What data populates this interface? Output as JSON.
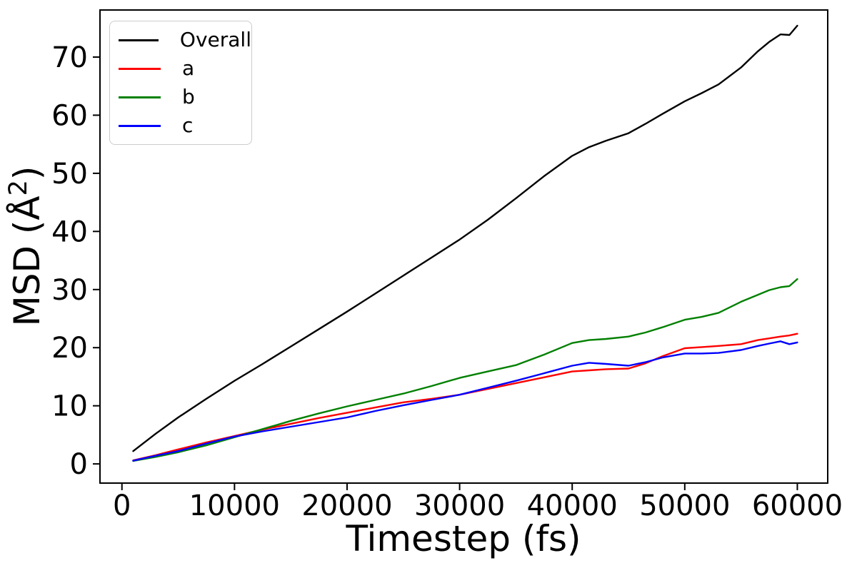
{
  "figure": {
    "background": "#ffffff"
  },
  "chart_data": {
    "type": "line",
    "title": "",
    "xlabel": "Timestep (fs)",
    "ylabel": "MSD (Å²)",
    "grid": false,
    "legend_position": "upper left",
    "xlim": [
      -1950,
      62700
    ],
    "ylim": [
      -3.3,
      78.1
    ],
    "x_ticks": [
      0,
      10000,
      20000,
      30000,
      40000,
      50000,
      60000
    ],
    "x_tick_labels": [
      "0",
      "10000",
      "20000",
      "30000",
      "40000",
      "50000",
      "60000"
    ],
    "y_ticks": [
      0,
      10,
      20,
      30,
      40,
      50,
      60,
      70
    ],
    "y_tick_labels": [
      "0",
      "10",
      "20",
      "30",
      "40",
      "50",
      "60",
      "70"
    ],
    "x": [
      1000,
      3000,
      5000,
      7500,
      10000,
      12500,
      15000,
      17500,
      20000,
      22500,
      25000,
      27500,
      30000,
      32500,
      35000,
      37500,
      40000,
      41500,
      43000,
      45000,
      46500,
      48000,
      50000,
      51500,
      53000,
      55000,
      56500,
      57500,
      58500,
      59300,
      60000
    ],
    "series": [
      {
        "name": "Overall",
        "color": "#000000",
        "values": [
          2.2,
          5.2,
          8.0,
          11.2,
          14.3,
          17.2,
          20.2,
          23.2,
          26.2,
          29.3,
          32.4,
          35.5,
          38.6,
          42.0,
          45.7,
          49.5,
          53.0,
          54.5,
          55.6,
          56.9,
          58.5,
          60.2,
          62.4,
          63.8,
          65.3,
          68.2,
          71.0,
          72.6,
          73.9,
          73.8,
          75.4
        ]
      },
      {
        "name": "a",
        "color": "#ff0000",
        "values": [
          0.6,
          1.5,
          2.5,
          3.7,
          4.8,
          5.9,
          6.9,
          7.9,
          8.8,
          9.7,
          10.6,
          11.2,
          11.9,
          12.9,
          13.9,
          14.9,
          15.9,
          16.1,
          16.3,
          16.4,
          17.3,
          18.5,
          19.9,
          20.1,
          20.3,
          20.6,
          21.3,
          21.6,
          21.9,
          22.1,
          22.4
        ]
      },
      {
        "name": "b",
        "color": "#008000",
        "values": [
          0.5,
          1.2,
          2.0,
          3.2,
          4.6,
          6.0,
          7.4,
          8.7,
          9.9,
          11.0,
          12.1,
          13.4,
          14.8,
          15.9,
          17.0,
          18.8,
          20.8,
          21.3,
          21.5,
          21.9,
          22.6,
          23.5,
          24.8,
          25.3,
          26.0,
          27.9,
          29.1,
          29.9,
          30.4,
          30.6,
          31.8
        ]
      },
      {
        "name": "c",
        "color": "#0000ff",
        "values": [
          0.55,
          1.4,
          2.2,
          3.5,
          4.7,
          5.6,
          6.4,
          7.2,
          8.0,
          9.1,
          10.1,
          11.0,
          11.9,
          13.1,
          14.3,
          15.6,
          16.9,
          17.4,
          17.2,
          16.9,
          17.5,
          18.3,
          19.0,
          19.0,
          19.1,
          19.6,
          20.3,
          20.7,
          21.1,
          20.6,
          20.9
        ]
      }
    ]
  }
}
